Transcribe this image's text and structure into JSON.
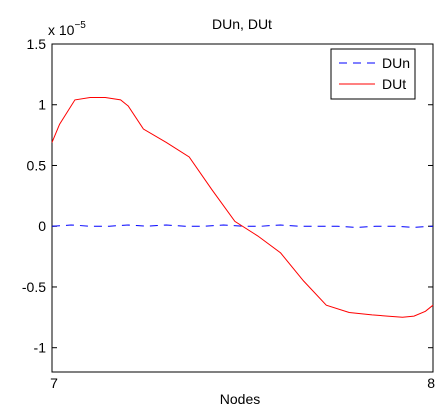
{
  "chart_data": {
    "type": "line",
    "title": "DUn, DUt",
    "xlabel": "Nodes",
    "ylabel": "",
    "y_scale_label": "x 10",
    "y_scale_exponent": "−5",
    "xlim": [
      7,
      8
    ],
    "ylim": [
      -1.2,
      1.5
    ],
    "x_ticks": [
      7,
      8
    ],
    "x_tick_labels": [
      "7",
      "8"
    ],
    "y_ticks": [
      1.5,
      1,
      0.5,
      0,
      -0.5,
      -1
    ],
    "y_tick_labels": [
      "1.5",
      "1",
      "0.5",
      "0",
      "-0.5",
      "-1"
    ],
    "grid": false,
    "legend_position": "top-right",
    "series": [
      {
        "name": "DUn",
        "color": "#0000ff",
        "style": "dashed",
        "x": [
          7.0,
          7.05,
          7.1,
          7.15,
          7.2,
          7.25,
          7.3,
          7.35,
          7.4,
          7.45,
          7.5,
          7.55,
          7.6,
          7.65,
          7.7,
          7.75,
          7.8,
          7.85,
          7.9,
          7.95,
          8.0
        ],
        "values": [
          0.0,
          0.01,
          0.0,
          0.0,
          0.01,
          0.0,
          0.01,
          0.0,
          0.0,
          0.01,
          0.0,
          0.0,
          0.01,
          0.0,
          0.0,
          0.0,
          -0.01,
          0.0,
          0.0,
          -0.01,
          0.0
        ]
      },
      {
        "name": "DUt",
        "color": "#ff0000",
        "style": "solid",
        "x": [
          7.0,
          7.02,
          7.06,
          7.1,
          7.14,
          7.18,
          7.2,
          7.24,
          7.3,
          7.36,
          7.42,
          7.48,
          7.54,
          7.6,
          7.66,
          7.72,
          7.78,
          7.84,
          7.88,
          7.92,
          7.95,
          7.98,
          8.0
        ],
        "values": [
          0.69,
          0.84,
          1.04,
          1.06,
          1.06,
          1.04,
          0.99,
          0.8,
          0.69,
          0.57,
          0.3,
          0.04,
          -0.08,
          -0.22,
          -0.45,
          -0.65,
          -0.71,
          -0.73,
          -0.74,
          -0.75,
          -0.74,
          -0.7,
          -0.65
        ]
      }
    ]
  }
}
